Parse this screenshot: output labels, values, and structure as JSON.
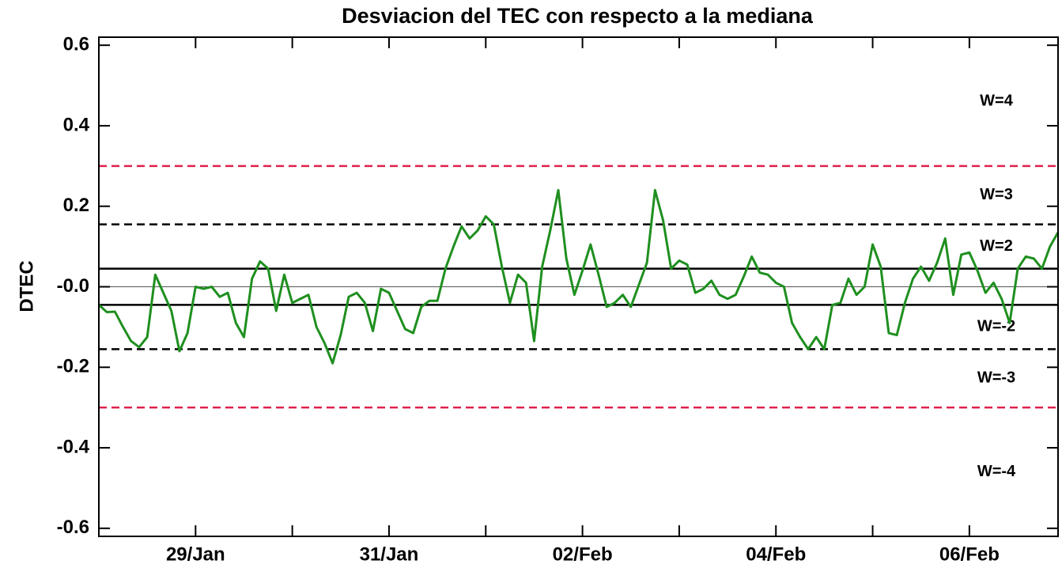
{
  "chart_data": {
    "type": "line",
    "title": "Desviacion del TEC con respecto a la mediana",
    "y_label": "DTEC",
    "categories": [
      null,
      null,
      null,
      null,
      null,
      null,
      null,
      null,
      null,
      null,
      null,
      null,
      "29/Jan",
      null,
      null,
      null,
      null,
      null,
      null,
      null,
      null,
      null,
      null,
      null,
      null,
      null,
      null,
      null,
      null,
      null,
      null,
      null,
      null,
      null,
      null,
      null,
      "31/Jan",
      null,
      null,
      null,
      null,
      null,
      null,
      null,
      null,
      null,
      null,
      null,
      null,
      null,
      null,
      null,
      null,
      null,
      null,
      null,
      null,
      null,
      null,
      null,
      "02/Feb",
      null,
      null,
      null,
      null,
      null,
      null,
      null,
      null,
      null,
      null,
      null,
      null,
      null,
      null,
      null,
      null,
      null,
      null,
      null,
      null,
      null,
      null,
      null,
      "04/Feb",
      null,
      null,
      null,
      null,
      null,
      null,
      null,
      null,
      null,
      null,
      null,
      null,
      null,
      null,
      null,
      null,
      null,
      null,
      null,
      null,
      null,
      null,
      null,
      "06/Feb",
      null,
      null,
      null,
      null,
      null,
      null,
      null,
      null,
      null,
      null,
      null
    ],
    "values": [
      -0.045,
      -0.063,
      -0.062,
      -0.1,
      -0.135,
      -0.15,
      -0.125,
      0.03,
      -0.015,
      -0.06,
      -0.16,
      -0.115,
      0.0,
      -0.005,
      0.0,
      -0.025,
      -0.015,
      -0.09,
      -0.125,
      0.02,
      0.063,
      0.045,
      -0.06,
      0.03,
      -0.04,
      -0.03,
      -0.02,
      -0.1,
      -0.14,
      -0.19,
      -0.12,
      -0.025,
      -0.015,
      -0.04,
      -0.11,
      -0.005,
      -0.015,
      -0.06,
      -0.105,
      -0.115,
      -0.05,
      -0.035,
      -0.035,
      0.045,
      0.1,
      0.15,
      0.12,
      0.14,
      0.175,
      0.155,
      0.05,
      -0.04,
      0.03,
      0.01,
      -0.135,
      0.05,
      0.14,
      0.24,
      0.07,
      -0.02,
      0.04,
      0.105,
      0.03,
      -0.05,
      -0.04,
      -0.02,
      -0.05,
      0.005,
      0.06,
      0.24,
      0.165,
      0.045,
      0.065,
      0.055,
      -0.015,
      -0.005,
      0.015,
      -0.02,
      -0.03,
      -0.02,
      0.025,
      0.075,
      0.035,
      0.03,
      0.01,
      0.0,
      -0.09,
      -0.125,
      -0.155,
      -0.125,
      -0.155,
      -0.045,
      -0.04,
      0.02,
      -0.02,
      0.0,
      0.105,
      0.05,
      -0.115,
      -0.12,
      -0.04,
      0.02,
      0.05,
      0.015,
      0.06,
      0.12,
      -0.02,
      0.08,
      0.085,
      0.04,
      -0.015,
      0.01,
      -0.03,
      -0.09,
      0.045,
      0.075,
      0.07,
      0.045,
      0.1,
      0.135
    ],
    "color": "#1f8f1f",
    "ylim": [
      -0.62,
      0.62
    ],
    "yticks": [
      0.6,
      0.4,
      0.2,
      {
        "value": 0,
        "label": "-0.0"
      },
      -0.2,
      -0.4,
      -0.6
    ],
    "levels": [
      {
        "value": 0.3,
        "color": "#e0204c",
        "dash": true,
        "width": 2.5
      },
      {
        "value": 0.155,
        "color": "#000000",
        "dash": true,
        "width": 2.5
      },
      {
        "value": 0.045,
        "color": "#000000",
        "dash": false,
        "width": 2.5
      },
      {
        "value": 0,
        "color": "#555555",
        "dash": false,
        "width": 1
      },
      {
        "value": -0.045,
        "color": "#000000",
        "dash": false,
        "width": 2.5
      },
      {
        "value": -0.155,
        "color": "#000000",
        "dash": true,
        "width": 2.5
      },
      {
        "value": -0.3,
        "color": "#e0204c",
        "dash": true,
        "width": 2.5
      }
    ],
    "zones": [
      "W=4",
      "W=3",
      "W=2",
      "W=-2",
      "W=-3",
      "W=-4"
    ]
  }
}
